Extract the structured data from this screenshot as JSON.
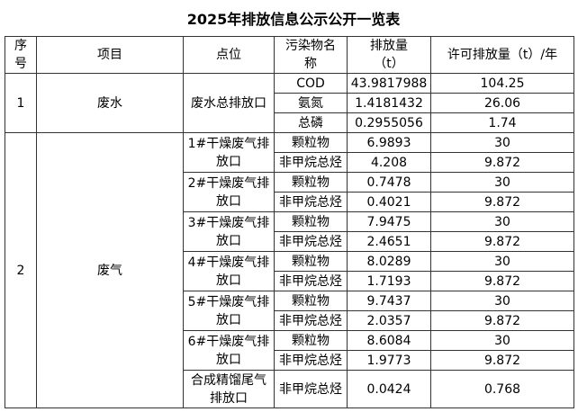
{
  "title": "2025年排放信息公示公开一览表",
  "table": {
    "header": [
      "序号",
      "项目",
      "点位",
      "污染物名称",
      "排放量（t）",
      "许可排放量（t）/年"
    ],
    "groups": [
      {
        "index": 1,
        "item": "废水",
        "points": [
          {
            "name": "废水总排放口",
            "pollutants": [
              {
                "name": "COD",
                "amount": 43.9817988,
                "limit": 104.25
              },
              {
                "name": "氨氮",
                "amount": 1.4181432,
                "limit": 26.06
              },
              {
                "name": "总磷",
                "amount": 0.2955056,
                "limit": 1.74
              }
            ]
          }
        ]
      },
      {
        "index": 2,
        "item": "废气",
        "points": [
          {
            "name": "1#干燥废气排放口",
            "pollutants": [
              {
                "name": "颗粒物",
                "amount": 6.9893,
                "limit": 30
              },
              {
                "name": "非甲烷总烃",
                "amount": 4.208,
                "limit": 9.872
              }
            ]
          },
          {
            "name": "2#干燥废气排放口",
            "pollutants": [
              {
                "name": "颗粒物",
                "amount": 0.7478,
                "limit": 30
              },
              {
                "name": "非甲烷总烃",
                "amount": 0.4021,
                "limit": 9.872
              }
            ]
          },
          {
            "name": "3#干燥废气排放口",
            "pollutants": [
              {
                "name": "颗粒物",
                "amount": 7.9475,
                "limit": 30
              },
              {
                "name": "非甲烷总烃",
                "amount": 2.4651,
                "limit": 9.872
              }
            ]
          },
          {
            "name": "4#干燥废气排放口",
            "pollutants": [
              {
                "name": "颗粒物",
                "amount": 8.0289,
                "limit": 30
              },
              {
                "name": "非甲烷总烃",
                "amount": 1.7193,
                "limit": 9.872
              }
            ]
          },
          {
            "name": "5#干燥废气排放口",
            "pollutants": [
              {
                "name": "颗粒物",
                "amount": 9.7437,
                "limit": 30
              },
              {
                "name": "非甲烷总烃",
                "amount": 2.0357,
                "limit": 9.872
              }
            ]
          },
          {
            "name": "6#干燥废气排放口",
            "pollutants": [
              {
                "name": "颗粒物",
                "amount": 8.6084,
                "limit": 30
              },
              {
                "name": "非甲烷总烃",
                "amount": 1.9773,
                "limit": 9.872
              }
            ]
          },
          {
            "name": "合成精馏尾气排放口",
            "pollutants": [
              {
                "name": "非甲烷总烃",
                "amount": 0.0424,
                "limit": 0.768
              }
            ]
          }
        ]
      }
    ]
  }
}
